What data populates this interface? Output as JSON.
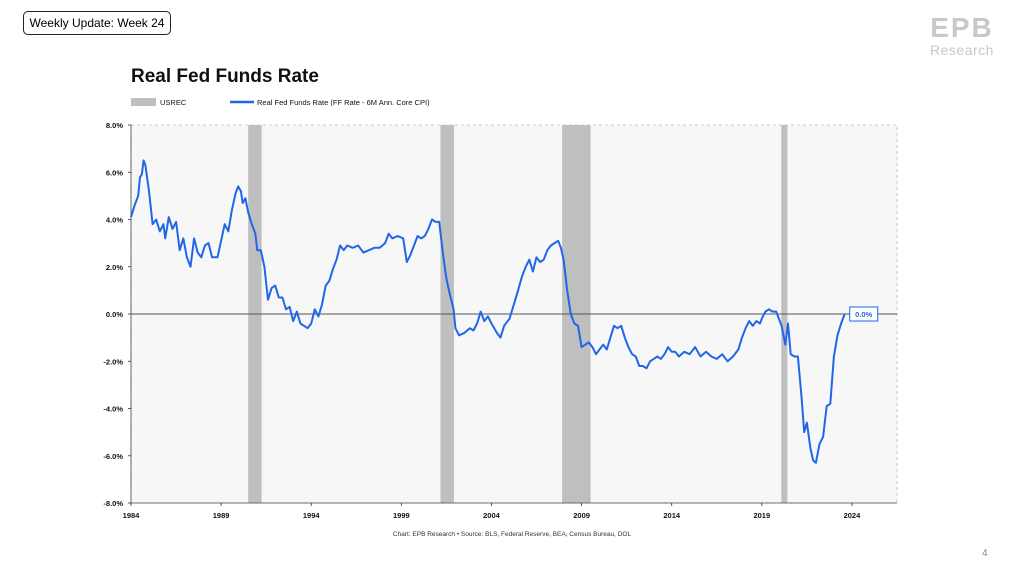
{
  "header": {
    "badge": "Weekly Update: Week 24"
  },
  "logo": {
    "letters": "EPB",
    "sub": "Research",
    "color": "#c8c8c8"
  },
  "footer": {
    "source": "Chart: EPB Research •  Source: BLS, Federal Reserve, BEA, Census Bureau, DOL",
    "page": "4"
  },
  "chart_data": {
    "type": "line",
    "title": "Real Fed Funds Rate",
    "xlabel": "",
    "ylabel": "",
    "legend_position": "top-left",
    "legend": [
      {
        "name": "USREC",
        "kind": "shade",
        "color": "#bfbfbf"
      },
      {
        "name": "Real Fed Funds Rate (FF Rate - 6M Ann. Core CPI)",
        "kind": "line",
        "color": "#2166e8"
      }
    ],
    "xlim": [
      1984.0,
      2026.5
    ],
    "ylim": [
      -8,
      8
    ],
    "x_ticks": [
      1984,
      1989,
      1994,
      1999,
      2004,
      2009,
      2014,
      2019,
      2024
    ],
    "y_ticks": [
      8,
      6,
      4,
      2,
      0,
      -2,
      -4,
      -6,
      -8
    ],
    "y_tick_format": "percent1",
    "grid": false,
    "plot_background": "#f7f7f7",
    "zero_line": true,
    "recessions": [
      [
        1990.5,
        1991.25
      ],
      [
        2001.17,
        2001.92
      ],
      [
        2007.92,
        2009.5
      ],
      [
        2020.08,
        2020.42
      ]
    ],
    "last_value_label": "0.0%",
    "series": [
      {
        "name": "Real Fed Funds Rate (FF Rate - 6M Ann. Core CPI)",
        "color": "#2166e8",
        "points": [
          [
            1984.0,
            4.1
          ],
          [
            1984.2,
            4.6
          ],
          [
            1984.4,
            5.0
          ],
          [
            1984.5,
            5.8
          ],
          [
            1984.6,
            5.9
          ],
          [
            1984.7,
            6.5
          ],
          [
            1984.8,
            6.3
          ],
          [
            1985.0,
            5.2
          ],
          [
            1985.1,
            4.5
          ],
          [
            1985.2,
            3.8
          ],
          [
            1985.4,
            4.0
          ],
          [
            1985.6,
            3.5
          ],
          [
            1985.8,
            3.8
          ],
          [
            1985.9,
            3.2
          ],
          [
            1986.1,
            4.1
          ],
          [
            1986.3,
            3.6
          ],
          [
            1986.5,
            3.9
          ],
          [
            1986.7,
            2.7
          ],
          [
            1986.9,
            3.2
          ],
          [
            1987.1,
            2.4
          ],
          [
            1987.3,
            2.0
          ],
          [
            1987.5,
            3.2
          ],
          [
            1987.7,
            2.6
          ],
          [
            1987.9,
            2.4
          ],
          [
            1988.1,
            2.9
          ],
          [
            1988.3,
            3.0
          ],
          [
            1988.5,
            2.4
          ],
          [
            1988.8,
            2.4
          ],
          [
            1989.0,
            3.1
          ],
          [
            1989.2,
            3.8
          ],
          [
            1989.4,
            3.5
          ],
          [
            1989.6,
            4.4
          ],
          [
            1989.8,
            5.1
          ],
          [
            1989.95,
            5.4
          ],
          [
            1990.1,
            5.2
          ],
          [
            1990.2,
            4.7
          ],
          [
            1990.35,
            4.9
          ],
          [
            1990.5,
            4.3
          ],
          [
            1990.7,
            3.8
          ],
          [
            1990.9,
            3.4
          ],
          [
            1991.0,
            2.7
          ],
          [
            1991.2,
            2.7
          ],
          [
            1991.4,
            2.0
          ],
          [
            1991.6,
            0.6
          ],
          [
            1991.8,
            1.1
          ],
          [
            1992.0,
            1.2
          ],
          [
            1992.2,
            0.7
          ],
          [
            1992.4,
            0.7
          ],
          [
            1992.6,
            0.2
          ],
          [
            1992.8,
            0.3
          ],
          [
            1993.0,
            -0.3
          ],
          [
            1993.2,
            0.1
          ],
          [
            1993.4,
            -0.4
          ],
          [
            1993.6,
            -0.5
          ],
          [
            1993.8,
            -0.6
          ],
          [
            1994.0,
            -0.4
          ],
          [
            1994.2,
            0.2
          ],
          [
            1994.4,
            -0.1
          ],
          [
            1994.6,
            0.4
          ],
          [
            1994.8,
            1.2
          ],
          [
            1995.0,
            1.4
          ],
          [
            1995.2,
            1.9
          ],
          [
            1995.4,
            2.3
          ],
          [
            1995.6,
            2.9
          ],
          [
            1995.8,
            2.7
          ],
          [
            1996.0,
            2.9
          ],
          [
            1996.3,
            2.8
          ],
          [
            1996.6,
            2.9
          ],
          [
            1996.9,
            2.6
          ],
          [
            1997.2,
            2.7
          ],
          [
            1997.5,
            2.8
          ],
          [
            1997.8,
            2.8
          ],
          [
            1998.1,
            3.0
          ],
          [
            1998.3,
            3.4
          ],
          [
            1998.5,
            3.2
          ],
          [
            1998.8,
            3.3
          ],
          [
            1999.1,
            3.2
          ],
          [
            1999.3,
            2.2
          ],
          [
            1999.5,
            2.5
          ],
          [
            1999.7,
            2.9
          ],
          [
            1999.9,
            3.3
          ],
          [
            2000.1,
            3.2
          ],
          [
            2000.3,
            3.3
          ],
          [
            2000.5,
            3.6
          ],
          [
            2000.7,
            4.0
          ],
          [
            2000.9,
            3.9
          ],
          [
            2001.1,
            3.9
          ],
          [
            2001.3,
            2.6
          ],
          [
            2001.5,
            1.5
          ],
          [
            2001.7,
            0.8
          ],
          [
            2001.9,
            0.2
          ],
          [
            2002.0,
            -0.6
          ],
          [
            2002.2,
            -0.9
          ],
          [
            2002.5,
            -0.8
          ],
          [
            2002.8,
            -0.6
          ],
          [
            2003.0,
            -0.7
          ],
          [
            2003.2,
            -0.4
          ],
          [
            2003.4,
            0.1
          ],
          [
            2003.6,
            -0.3
          ],
          [
            2003.8,
            -0.1
          ],
          [
            2004.0,
            -0.4
          ],
          [
            2004.3,
            -0.8
          ],
          [
            2004.5,
            -1.0
          ],
          [
            2004.7,
            -0.5
          ],
          [
            2005.0,
            -0.2
          ],
          [
            2005.2,
            0.3
          ],
          [
            2005.4,
            0.8
          ],
          [
            2005.7,
            1.6
          ],
          [
            2005.9,
            2.0
          ],
          [
            2006.1,
            2.3
          ],
          [
            2006.3,
            1.8
          ],
          [
            2006.5,
            2.4
          ],
          [
            2006.7,
            2.2
          ],
          [
            2006.9,
            2.3
          ],
          [
            2007.1,
            2.7
          ],
          [
            2007.3,
            2.9
          ],
          [
            2007.5,
            3.0
          ],
          [
            2007.7,
            3.1
          ],
          [
            2007.85,
            2.8
          ],
          [
            2008.0,
            2.3
          ],
          [
            2008.2,
            1.0
          ],
          [
            2008.4,
            0.0
          ],
          [
            2008.6,
            -0.4
          ],
          [
            2008.8,
            -0.5
          ],
          [
            2009.0,
            -1.4
          ],
          [
            2009.2,
            -1.3
          ],
          [
            2009.4,
            -1.2
          ],
          [
            2009.6,
            -1.4
          ],
          [
            2009.8,
            -1.7
          ],
          [
            2010.0,
            -1.5
          ],
          [
            2010.2,
            -1.3
          ],
          [
            2010.4,
            -1.5
          ],
          [
            2010.6,
            -1.0
          ],
          [
            2010.8,
            -0.5
          ],
          [
            2011.0,
            -0.6
          ],
          [
            2011.2,
            -0.5
          ],
          [
            2011.4,
            -1.0
          ],
          [
            2011.6,
            -1.4
          ],
          [
            2011.8,
            -1.7
          ],
          [
            2012.0,
            -1.8
          ],
          [
            2012.2,
            -2.2
          ],
          [
            2012.4,
            -2.2
          ],
          [
            2012.6,
            -2.3
          ],
          [
            2012.8,
            -2.0
          ],
          [
            2013.0,
            -1.9
          ],
          [
            2013.2,
            -1.8
          ],
          [
            2013.4,
            -1.9
          ],
          [
            2013.6,
            -1.7
          ],
          [
            2013.8,
            -1.4
          ],
          [
            2014.0,
            -1.6
          ],
          [
            2014.2,
            -1.6
          ],
          [
            2014.4,
            -1.8
          ],
          [
            2014.7,
            -1.6
          ],
          [
            2015.0,
            -1.7
          ],
          [
            2015.3,
            -1.4
          ],
          [
            2015.6,
            -1.8
          ],
          [
            2015.9,
            -1.6
          ],
          [
            2016.2,
            -1.8
          ],
          [
            2016.5,
            -1.9
          ],
          [
            2016.8,
            -1.7
          ],
          [
            2017.1,
            -2.0
          ],
          [
            2017.4,
            -1.8
          ],
          [
            2017.7,
            -1.5
          ],
          [
            2017.9,
            -1.0
          ],
          [
            2018.1,
            -0.6
          ],
          [
            2018.3,
            -0.3
          ],
          [
            2018.5,
            -0.5
          ],
          [
            2018.7,
            -0.3
          ],
          [
            2018.9,
            -0.4
          ],
          [
            2019.0,
            -0.2
          ],
          [
            2019.2,
            0.1
          ],
          [
            2019.4,
            0.2
          ],
          [
            2019.6,
            0.1
          ],
          [
            2019.8,
            0.1
          ],
          [
            2020.0,
            -0.3
          ],
          [
            2020.1,
            -0.5
          ],
          [
            2020.3,
            -1.3
          ],
          [
            2020.45,
            -0.4
          ],
          [
            2020.6,
            -1.7
          ],
          [
            2020.8,
            -1.8
          ],
          [
            2021.0,
            -1.8
          ],
          [
            2021.2,
            -3.5
          ],
          [
            2021.35,
            -5.0
          ],
          [
            2021.5,
            -4.6
          ],
          [
            2021.7,
            -5.7
          ],
          [
            2021.85,
            -6.2
          ],
          [
            2022.0,
            -6.3
          ],
          [
            2022.2,
            -5.5
          ],
          [
            2022.4,
            -5.2
          ],
          [
            2022.6,
            -3.9
          ],
          [
            2022.8,
            -3.8
          ],
          [
            2023.0,
            -1.8
          ],
          [
            2023.2,
            -0.9
          ],
          [
            2023.4,
            -0.4
          ],
          [
            2023.6,
            0.0
          ]
        ]
      }
    ]
  }
}
